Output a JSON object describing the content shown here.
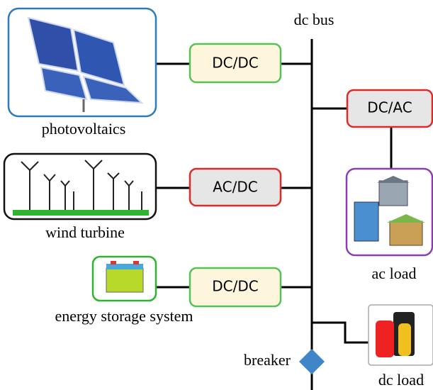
{
  "bus_label": "dc bus",
  "sources": [
    {
      "label": "photovoltaics",
      "converter": "DC/DC"
    },
    {
      "label": "wind turbine",
      "converter": "AC/DC"
    },
    {
      "label": "energy storage system",
      "converter": "DC/DC"
    }
  ],
  "ac_load": {
    "converter": "DC/AC",
    "label": "ac load"
  },
  "dc_load": {
    "label": "dc load"
  },
  "breaker": {
    "label": "breaker"
  }
}
